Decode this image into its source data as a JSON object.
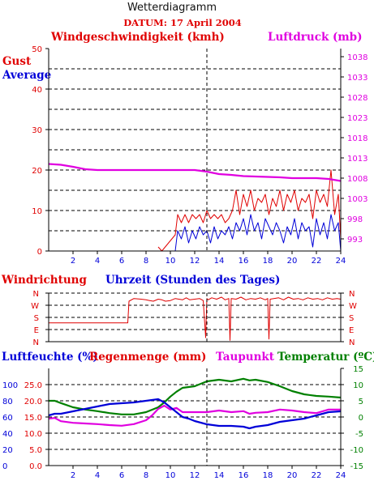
{
  "title": "Wetterdiagramm",
  "date_label": "DATUM: 17 April 2004",
  "colors": {
    "red": "#e00000",
    "blue": "#0000d8",
    "magenta": "#e000e0",
    "green": "#008000",
    "black": "#000000"
  },
  "chart_data": [
    {
      "type": "line",
      "name": "wind-pressure",
      "labels": {
        "wind": "Windgeschwindigkeit (kmh)",
        "pressure": "Luftdruck (mb)",
        "gust": "Gust",
        "average": "Average"
      },
      "xlim": [
        0,
        24
      ],
      "x_ticks": [
        "2",
        "4",
        "6",
        "8",
        "10",
        "12",
        "14",
        "16",
        "18",
        "20",
        "22",
        "24"
      ],
      "ylim_left": [
        0,
        50
      ],
      "y_ticks_left": [
        "0",
        "10",
        "20",
        "30",
        "40",
        "50"
      ],
      "ylim_right": [
        990,
        1040
      ],
      "y_ticks_right": [
        "993",
        "998",
        "1003",
        "1008",
        "1013",
        "1018",
        "1023",
        "1028",
        "1033",
        "1038"
      ],
      "grid": true,
      "series": [
        {
          "name": "Luftdruck",
          "color": "#e000e0",
          "x": [
            0,
            1,
            2,
            3,
            4,
            5,
            6,
            7,
            8,
            9,
            10,
            11,
            12,
            13,
            14,
            15,
            16,
            17,
            18,
            19,
            20,
            21,
            22,
            23,
            24
          ],
          "y": [
            1011.5,
            1011.3,
            1010.8,
            1010.2,
            1010.0,
            1010.0,
            1010.0,
            1010.0,
            1010.0,
            1010.0,
            1010.0,
            1010.0,
            1010.0,
            1009.6,
            1009.0,
            1008.8,
            1008.5,
            1008.4,
            1008.3,
            1008.2,
            1008.0,
            1008.0,
            1008.0,
            1007.8,
            1007.3
          ]
        },
        {
          "name": "Gust",
          "color": "#e00000",
          "x": [
            9.0,
            9.3,
            10.4,
            10.6,
            10.9,
            11.2,
            11.5,
            11.8,
            12.1,
            12.4,
            12.7,
            13.0,
            13.3,
            13.6,
            13.9,
            14.2,
            14.5,
            14.8,
            15.1,
            15.4,
            15.7,
            16.0,
            16.3,
            16.6,
            16.9,
            17.2,
            17.5,
            17.8,
            18.1,
            18.4,
            18.7,
            19.0,
            19.3,
            19.6,
            19.9,
            20.2,
            20.5,
            20.8,
            21.1,
            21.4,
            21.7,
            22.0,
            22.3,
            22.6,
            22.9,
            23.2,
            23.5,
            23.8,
            24.0
          ],
          "y": [
            1,
            0,
            4,
            9,
            7,
            9,
            7,
            9,
            8,
            9,
            7,
            10,
            8,
            9,
            8,
            9,
            7,
            8,
            10,
            15,
            9,
            14,
            11,
            15,
            10,
            13,
            12,
            14,
            9,
            13,
            11,
            15,
            10,
            14,
            12,
            15,
            10,
            13,
            12,
            14,
            8,
            15,
            12,
            14,
            11,
            20,
            9,
            14,
            3
          ]
        },
        {
          "name": "Average",
          "color": "#0000d8",
          "x": [
            10.4,
            10.6,
            10.9,
            11.2,
            11.5,
            11.8,
            12.1,
            12.4,
            12.7,
            13.0,
            13.3,
            13.6,
            13.9,
            14.2,
            14.5,
            14.8,
            15.1,
            15.4,
            15.7,
            16.0,
            16.3,
            16.6,
            16.9,
            17.2,
            17.5,
            17.8,
            18.1,
            18.4,
            18.7,
            19.0,
            19.3,
            19.6,
            19.9,
            20.2,
            20.5,
            20.8,
            21.1,
            21.4,
            21.7,
            22.0,
            22.3,
            22.6,
            22.9,
            23.2,
            23.5,
            23.8,
            24.0
          ],
          "y": [
            0,
            5,
            3,
            6,
            2,
            5,
            3,
            6,
            4,
            5,
            2,
            6,
            3,
            5,
            4,
            6,
            3,
            7,
            5,
            8,
            4,
            9,
            5,
            7,
            3,
            8,
            6,
            4,
            7,
            5,
            2,
            6,
            4,
            8,
            3,
            7,
            5,
            6,
            1,
            8,
            4,
            7,
            3,
            9,
            5,
            7,
            0
          ]
        }
      ]
    },
    {
      "type": "line",
      "name": "wind-direction",
      "labels": {
        "direction": "Windrichtung",
        "xlabel": "Uhrzeit (Stunden des Tages)"
      },
      "xlim": [
        0,
        24
      ],
      "y_categories": [
        "N",
        "W",
        "S",
        "E",
        "N"
      ],
      "series": [
        {
          "name": "Windrichtung",
          "color": "#e00000",
          "x": [
            0,
            6.5,
            6.6,
            7.0,
            7.6,
            8.0,
            8.3,
            8.6,
            9.0,
            9.3,
            9.6,
            10.0,
            10.4,
            10.7,
            11.0,
            11.3,
            11.6,
            12.0,
            12.4,
            12.7,
            12.9,
            13.0,
            13.1,
            13.4,
            13.8,
            14.2,
            14.5,
            14.8,
            14.9,
            15.0,
            15.4,
            15.8,
            16.2,
            16.6,
            17.0,
            17.4,
            17.8,
            18.0,
            18.1,
            18.2,
            18.5,
            18.9,
            19.3,
            19.7,
            20.1,
            20.5,
            20.9,
            21.3,
            21.7,
            22.1,
            22.5,
            22.9,
            23.3,
            23.7,
            24.0
          ],
          "y": [
            140,
            140,
            300,
            320,
            315,
            310,
            305,
            300,
            315,
            310,
            300,
            305,
            320,
            315,
            310,
            325,
            310,
            315,
            320,
            305,
            30,
            320,
            310,
            325,
            315,
            330,
            310,
            320,
            10,
            320,
            315,
            330,
            310,
            320,
            315,
            325,
            310,
            320,
            20,
            315,
            320,
            325,
            310,
            330,
            315,
            320,
            310,
            325,
            315,
            320,
            310,
            325,
            315,
            320,
            315
          ]
        }
      ]
    },
    {
      "type": "line",
      "name": "humidity-rain-dew-temp",
      "labels": {
        "humidity": "Luftfeuchte (%)",
        "rain": "Regenmenge (mm)",
        "dew": "Taupunkt",
        "temp": "Temperatur (ºC)"
      },
      "xlim": [
        0,
        24
      ],
      "x_ticks": [
        "2",
        "4",
        "6",
        "8",
        "10",
        "12",
        "14",
        "16",
        "18",
        "20",
        "22",
        "24"
      ],
      "y_ticks_humidity": [
        "0",
        "20",
        "40",
        "60",
        "80",
        "100"
      ],
      "y_ticks_rain": [
        "0.0",
        "5.0",
        "10.0",
        "15.0",
        "20.0",
        "25.0"
      ],
      "ylim_temp": [
        -15,
        15
      ],
      "y_ticks_temp": [
        "-15",
        "-10",
        "-5",
        "0",
        "5",
        "10",
        "15"
      ],
      "grid": true,
      "series": [
        {
          "name": "Temperatur",
          "color": "#008000",
          "x": [
            0,
            0.5,
            1,
            2,
            3,
            4,
            5,
            6,
            7,
            8,
            9,
            9.5,
            10,
            10.5,
            11,
            12,
            13,
            14,
            15,
            16,
            16.5,
            17,
            18,
            19,
            20,
            21,
            22,
            23,
            24
          ],
          "y": [
            5.0,
            5.0,
            4.3,
            3.0,
            2.3,
            1.8,
            1.2,
            0.8,
            0.8,
            1.5,
            3.0,
            4.5,
            6.3,
            7.8,
            9.0,
            9.5,
            11.0,
            11.5,
            11.0,
            11.8,
            11.3,
            11.5,
            10.8,
            9.5,
            8.0,
            7.0,
            6.5,
            6.3,
            6.0
          ]
        },
        {
          "name": "Taupunkt",
          "color": "#e000e0",
          "x": [
            0,
            0.5,
            1,
            2,
            3,
            4,
            5,
            6,
            7,
            8,
            8.5,
            9,
            9.5,
            10,
            10.5,
            11,
            12,
            13,
            14,
            15,
            16,
            16.5,
            17,
            18,
            19,
            20,
            21,
            22,
            23,
            24
          ],
          "y": [
            -0.5,
            -0.3,
            -1.3,
            -1.8,
            -2.0,
            -2.2,
            -2.5,
            -2.7,
            -2.2,
            -1.0,
            0.5,
            2.5,
            3.5,
            2.3,
            2.8,
            1.5,
            1.5,
            1.5,
            2.0,
            1.5,
            1.8,
            1.0,
            1.3,
            1.5,
            2.3,
            2.0,
            1.5,
            1.2,
            2.3,
            2.3
          ]
        },
        {
          "name": "Luftfeuchte",
          "color": "#0000d8",
          "x": [
            0,
            0.5,
            1,
            2,
            3,
            4,
            5,
            6,
            7,
            8,
            9,
            9.5,
            10,
            10.5,
            11,
            11.5,
            12,
            13,
            14,
            15,
            16,
            16.5,
            17,
            18,
            19,
            20,
            21,
            22,
            23,
            24
          ],
          "y": [
            62,
            64,
            64,
            67,
            70,
            73,
            76,
            77,
            78,
            80,
            82,
            78,
            72,
            66,
            60,
            58,
            55,
            51,
            49,
            49,
            48,
            46,
            48,
            50,
            54,
            56,
            58,
            62,
            66,
            67
          ]
        }
      ]
    }
  ]
}
